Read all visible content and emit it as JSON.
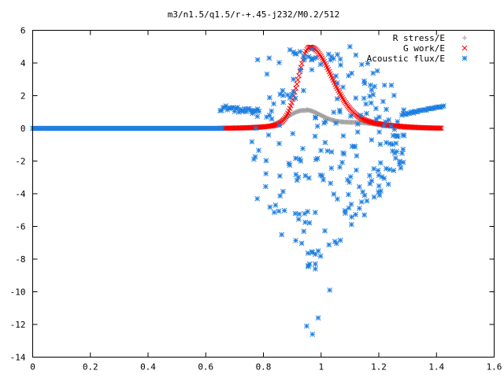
{
  "chart_data": {
    "type": "scatter",
    "title": "m3/n1.5/q1.5/r-+.45-j232/M0.2/512",
    "xlabel": "",
    "ylabel": "",
    "xlim": [
      0,
      1.6
    ],
    "ylim": [
      -14,
      6
    ],
    "x_ticks": [
      "0",
      "0.2",
      "0.4",
      "0.6",
      "0.8",
      "1",
      "1.2",
      "1.4",
      "1.6"
    ],
    "y_ticks": [
      "6",
      "4",
      "2",
      "0",
      "-2",
      "-4",
      "-6",
      "-8",
      "-10",
      "-12",
      "-14"
    ],
    "grid": false,
    "legend_position": "top-right",
    "series": [
      {
        "name": "R stress/E",
        "marker": "plus",
        "color": "#a0a0a0",
        "description": "gaussian bump near x=0.94, peak about 1.1, zero elsewhere, x range 0.65 to 1.42",
        "points": [
          [
            0.66,
            0.02
          ],
          [
            0.7,
            0.05
          ],
          [
            0.74,
            0.1
          ],
          [
            0.78,
            0.2
          ],
          [
            0.82,
            0.35
          ],
          [
            0.86,
            0.6
          ],
          [
            0.9,
            0.9
          ],
          [
            0.94,
            1.1
          ],
          [
            0.98,
            0.95
          ],
          [
            1.02,
            0.6
          ],
          [
            1.06,
            0.45
          ],
          [
            1.1,
            0.3
          ],
          [
            1.14,
            0.25
          ],
          [
            1.18,
            0.2
          ],
          [
            1.22,
            0.12
          ],
          [
            1.26,
            0.05
          ],
          [
            1.3,
            0.02
          ],
          [
            1.34,
            0.01
          ],
          [
            1.38,
            0.0
          ],
          [
            1.42,
            0.0
          ]
        ]
      },
      {
        "name": "G work/E",
        "marker": "cross",
        "color": "#ff0000",
        "description": "gaussian peak near x=0.96 reaching about 4.6, x range 0.65 to 1.42",
        "points": [
          [
            0.66,
            0.0
          ],
          [
            0.7,
            0.02
          ],
          [
            0.74,
            0.06
          ],
          [
            0.78,
            0.18
          ],
          [
            0.82,
            0.45
          ],
          [
            0.86,
            1.1
          ],
          [
            0.9,
            2.5
          ],
          [
            0.92,
            3.4
          ],
          [
            0.94,
            4.2
          ],
          [
            0.96,
            4.6
          ],
          [
            0.98,
            4.4
          ],
          [
            1.0,
            3.6
          ],
          [
            1.02,
            2.9
          ],
          [
            1.06,
            1.9
          ],
          [
            1.1,
            1.25
          ],
          [
            1.14,
            0.8
          ],
          [
            1.18,
            0.5
          ],
          [
            1.22,
            0.3
          ],
          [
            1.26,
            0.18
          ],
          [
            1.3,
            0.1
          ],
          [
            1.34,
            0.05
          ],
          [
            1.38,
            0.02
          ],
          [
            1.42,
            0.01
          ]
        ]
      },
      {
        "name": "Acoustic flux/E",
        "marker": "star",
        "color": "#1e7ee0",
        "description": "zero from x=0 to 0.65; branches near +1 from 0.65 to 0.8 and 1.28 to 1.42; scattered points between -12.7 and +5 for x between 0.75 and 1.3",
        "points": [
          [
            0.0,
            0.0
          ],
          [
            0.2,
            0.0
          ],
          [
            0.4,
            0.0
          ],
          [
            0.6,
            0.0
          ],
          [
            0.65,
            1.1
          ],
          [
            0.7,
            1.0
          ],
          [
            0.75,
            1.2
          ],
          [
            0.78,
            1.6
          ],
          [
            0.9,
            1.3
          ],
          [
            0.94,
            -6.3
          ],
          [
            0.95,
            -12.1
          ],
          [
            0.97,
            -12.6
          ],
          [
            0.99,
            -11.6
          ],
          [
            1.03,
            -9.9
          ],
          [
            1.1,
            5.0
          ],
          [
            1.15,
            -5.3
          ],
          [
            1.3,
            0.8
          ],
          [
            1.36,
            0.95
          ],
          [
            1.4,
            1.15
          ],
          [
            1.42,
            1.35
          ]
        ]
      }
    ]
  }
}
